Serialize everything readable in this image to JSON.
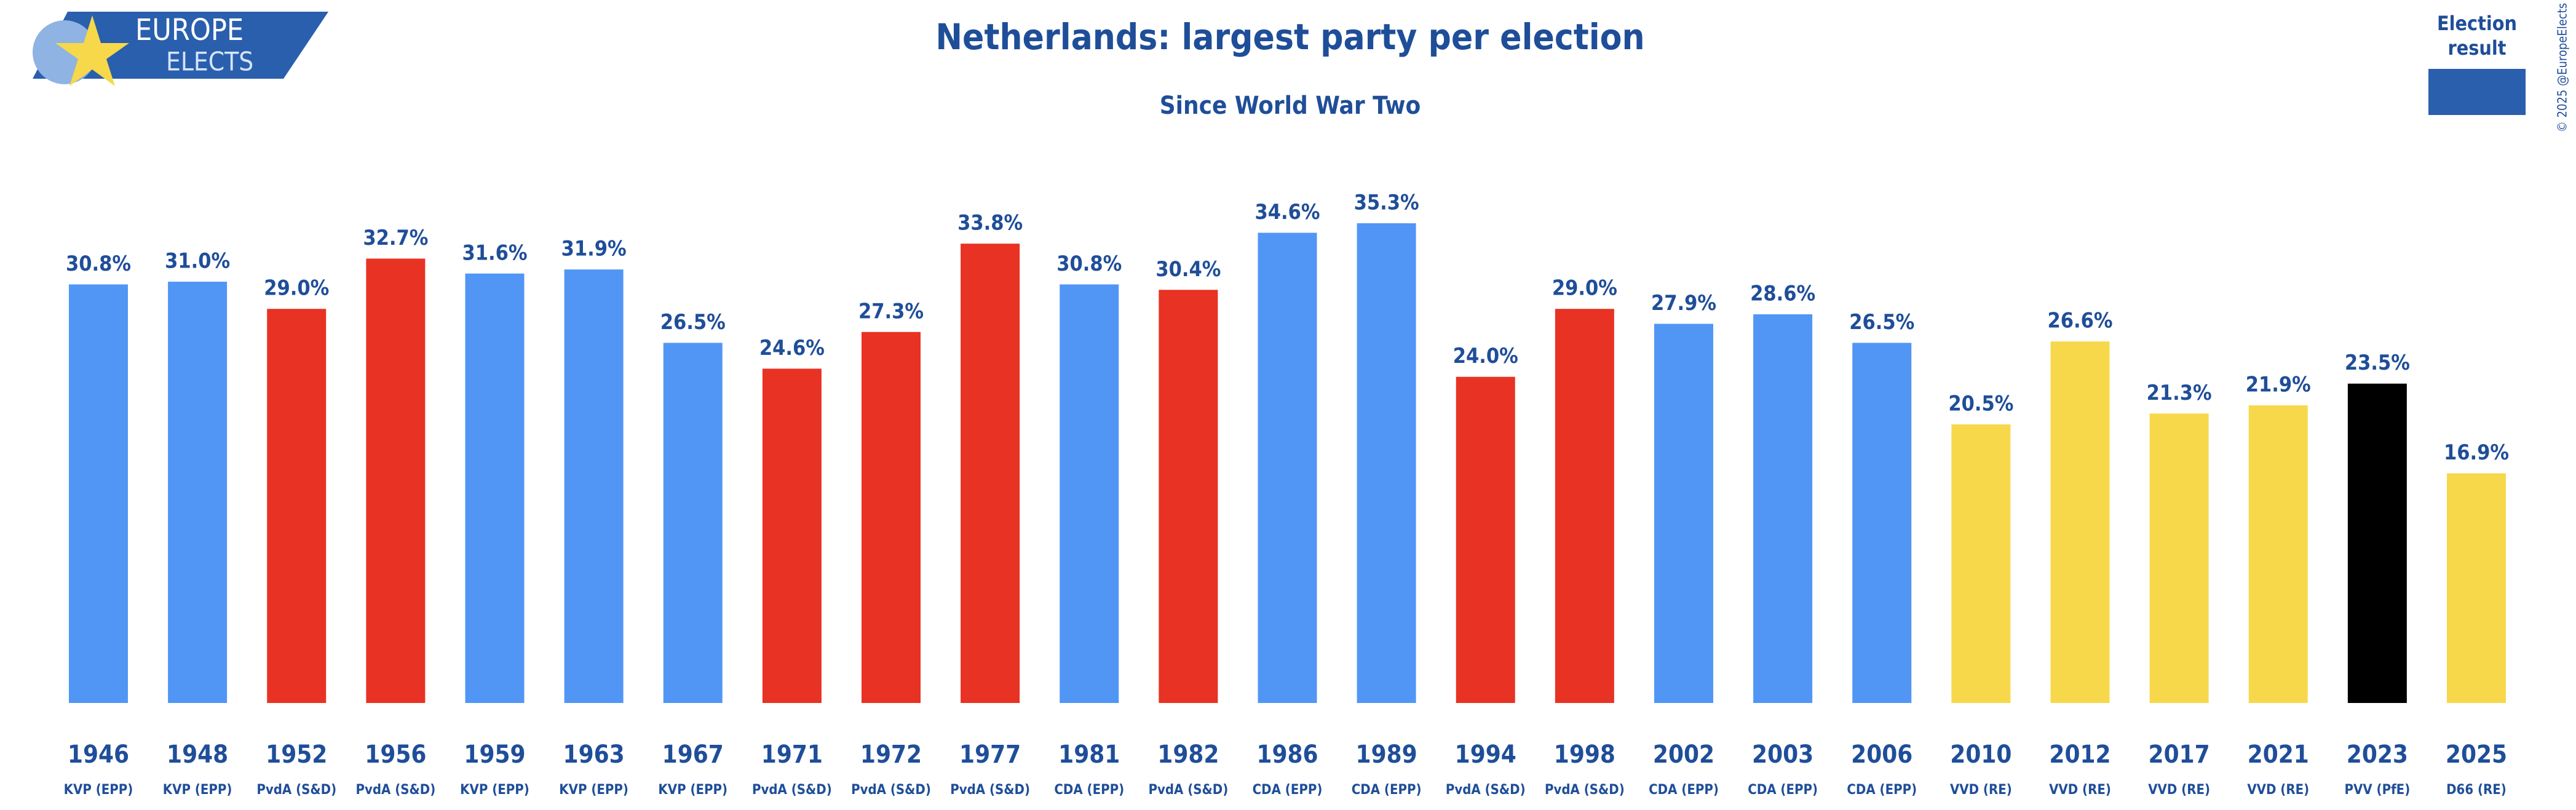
{
  "logo": {
    "top": "EUROPE",
    "bottom": "ELECTS"
  },
  "copyright": "© 2025 @EuropeElects",
  "chart_data": {
    "type": "bar",
    "title": "Netherlands: largest party per election",
    "subtitle": "Since World War Two",
    "legend": {
      "label": "Election result",
      "color": "#2a5fad",
      "position": "top-right"
    },
    "categories": [
      "1946",
      "1948",
      "1952",
      "1956",
      "1959",
      "1963",
      "1967",
      "1971",
      "1972",
      "1977",
      "1981",
      "1982",
      "1986",
      "1989",
      "1994",
      "1998",
      "2002",
      "2003",
      "2006",
      "2010",
      "2012",
      "2017",
      "2021",
      "2023",
      "2025"
    ],
    "parties": [
      "KVP (EPP)",
      "KVP (EPP)",
      "PvdA (S&D)",
      "PvdA (S&D)",
      "KVP (EPP)",
      "KVP (EPP)",
      "KVP (EPP)",
      "PvdA (S&D)",
      "PvdA (S&D)",
      "PvdA (S&D)",
      "CDA (EPP)",
      "PvdA (S&D)",
      "CDA (EPP)",
      "CDA (EPP)",
      "PvdA (S&D)",
      "PvdA (S&D)",
      "CDA (EPP)",
      "CDA (EPP)",
      "CDA (EPP)",
      "VVD (RE)",
      "VVD (RE)",
      "VVD (RE)",
      "VVD (RE)",
      "PVV (PfE)",
      "D66 (RE)"
    ],
    "values": [
      30.8,
      31.0,
      29.0,
      32.7,
      31.6,
      31.9,
      26.5,
      24.6,
      27.3,
      33.8,
      30.8,
      30.4,
      34.6,
      35.3,
      24.0,
      29.0,
      27.9,
      28.6,
      26.5,
      20.5,
      26.6,
      21.3,
      21.9,
      23.5,
      16.9
    ],
    "value_labels": [
      "30.8%",
      "31.0%",
      "29.0%",
      "32.7%",
      "31.6%",
      "31.9%",
      "26.5%",
      "24.6%",
      "27.3%",
      "33.8%",
      "30.8%",
      "30.4%",
      "34.6%",
      "35.3%",
      "24.0%",
      "29.0%",
      "27.9%",
      "28.6%",
      "26.5%",
      "20.5%",
      "26.6%",
      "21.3%",
      "21.9%",
      "23.5%",
      "16.9%"
    ],
    "colors": [
      "#5196f5",
      "#5196f5",
      "#e83223",
      "#e83223",
      "#5196f5",
      "#5196f5",
      "#5196f5",
      "#e83223",
      "#e83223",
      "#e83223",
      "#5196f5",
      "#e83223",
      "#5196f5",
      "#5196f5",
      "#e83223",
      "#e83223",
      "#5196f5",
      "#5196f5",
      "#5196f5",
      "#f7d84a",
      "#f7d84a",
      "#f7d84a",
      "#f7d84a",
      "#000000",
      "#f7d84a"
    ]
  }
}
